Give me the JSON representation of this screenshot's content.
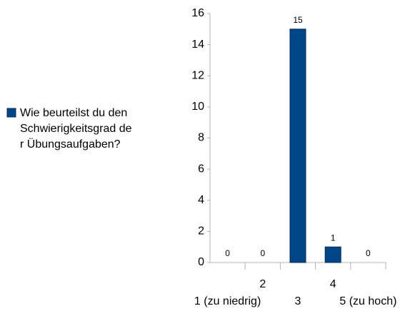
{
  "chart_data": {
    "type": "bar",
    "categories": [
      "1 (zu niedrig)",
      "2",
      "3",
      "4",
      "5 (zu hoch)"
    ],
    "series": [
      {
        "name": "Wie beurteilst du den Schwierigkeitsgrad der Übungsaufgaben?",
        "color": "#004586",
        "values": [
          0,
          0,
          15,
          1,
          0
        ]
      }
    ],
    "ylim": [
      0,
      16
    ],
    "yticks": [
      0,
      2,
      4,
      6,
      8,
      10,
      12,
      14,
      16
    ],
    "grid": false,
    "legend": "left"
  }
}
